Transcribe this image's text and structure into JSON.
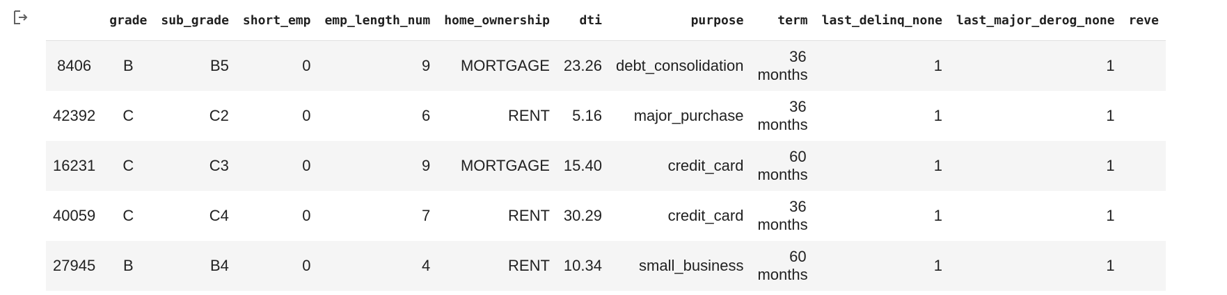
{
  "table": {
    "columns": [
      "",
      "grade",
      "sub_grade",
      "short_emp",
      "emp_length_num",
      "home_ownership",
      "dti",
      "purpose",
      "term",
      "last_delinq_none",
      "last_major_derog_none",
      "reve"
    ],
    "rows": [
      {
        "index": "8406",
        "grade": "B",
        "sub_grade": "B5",
        "short_emp": "0",
        "emp_length_num": "9",
        "home_ownership": "MORTGAGE",
        "dti": "23.26",
        "purpose": "debt_consolidation",
        "term_num": "36",
        "term_unit": "months",
        "last_delinq_none": "1",
        "last_major_derog_none": "1"
      },
      {
        "index": "42392",
        "grade": "C",
        "sub_grade": "C2",
        "short_emp": "0",
        "emp_length_num": "6",
        "home_ownership": "RENT",
        "dti": "5.16",
        "purpose": "major_purchase",
        "term_num": "36",
        "term_unit": "months",
        "last_delinq_none": "1",
        "last_major_derog_none": "1"
      },
      {
        "index": "16231",
        "grade": "C",
        "sub_grade": "C3",
        "short_emp": "0",
        "emp_length_num": "9",
        "home_ownership": "MORTGAGE",
        "dti": "15.40",
        "purpose": "credit_card",
        "term_num": "60",
        "term_unit": "months",
        "last_delinq_none": "1",
        "last_major_derog_none": "1"
      },
      {
        "index": "40059",
        "grade": "C",
        "sub_grade": "C4",
        "short_emp": "0",
        "emp_length_num": "7",
        "home_ownership": "RENT",
        "dti": "30.29",
        "purpose": "credit_card",
        "term_num": "36",
        "term_unit": "months",
        "last_delinq_none": "1",
        "last_major_derog_none": "1"
      },
      {
        "index": "27945",
        "grade": "B",
        "sub_grade": "B4",
        "short_emp": "0",
        "emp_length_num": "4",
        "home_ownership": "RENT",
        "dti": "10.34",
        "purpose": "small_business",
        "term_num": "60",
        "term_unit": "months",
        "last_delinq_none": "1",
        "last_major_derog_none": "1"
      }
    ]
  },
  "icons": {
    "output": "output-arrow-icon"
  }
}
